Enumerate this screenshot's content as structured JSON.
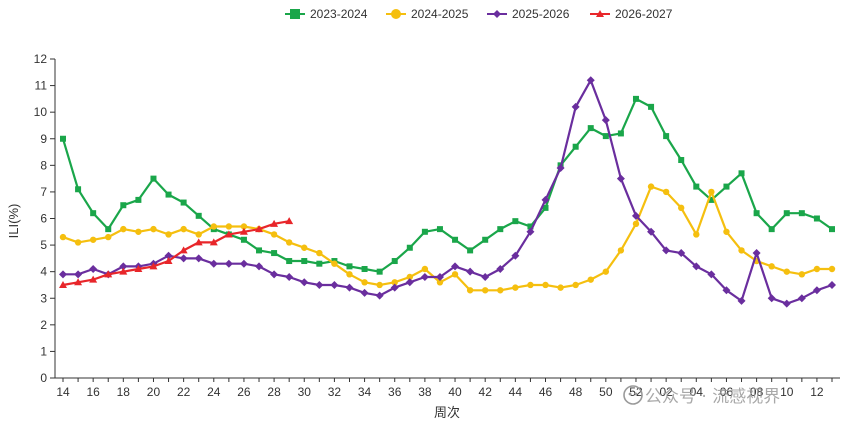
{
  "chart_data": {
    "type": "line",
    "title": "",
    "xlabel": "周次",
    "ylabel": "ILI(%)",
    "ylim": [
      0,
      12
    ],
    "yticks": [
      0,
      1,
      2,
      3,
      4,
      5,
      6,
      7,
      8,
      9,
      10,
      11,
      12
    ],
    "x_weeks": [
      14,
      15,
      16,
      17,
      18,
      19,
      20,
      21,
      22,
      23,
      24,
      25,
      26,
      27,
      28,
      29,
      30,
      31,
      32,
      33,
      34,
      35,
      36,
      37,
      38,
      39,
      40,
      41,
      42,
      43,
      44,
      45,
      46,
      47,
      48,
      49,
      50,
      51,
      52,
      1,
      2,
      3,
      4,
      5,
      6,
      7,
      8,
      9,
      10,
      11,
      12,
      13
    ],
    "x_tick_labels": [
      "14",
      "16",
      "18",
      "20",
      "22",
      "24",
      "26",
      "28",
      "30",
      "32",
      "34",
      "36",
      "38",
      "40",
      "42",
      "44",
      "46",
      "48",
      "50",
      "52",
      "02",
      "04",
      "06",
      "08",
      "10",
      "12"
    ],
    "x_tick_indices": [
      0,
      2,
      4,
      6,
      8,
      10,
      12,
      14,
      16,
      18,
      20,
      22,
      24,
      26,
      28,
      30,
      32,
      34,
      36,
      38,
      40,
      42,
      44,
      46,
      48,
      50
    ],
    "legend_position": "top-center",
    "grid": false,
    "series": [
      {
        "name": "2023-2024",
        "color": "#1aa64a",
        "marker": "square",
        "values": [
          9.0,
          7.1,
          6.2,
          5.6,
          6.5,
          6.7,
          7.5,
          6.9,
          6.6,
          6.1,
          5.6,
          5.4,
          5.2,
          4.8,
          4.7,
          4.4,
          4.4,
          4.3,
          4.4,
          4.2,
          4.1,
          4.0,
          4.4,
          4.9,
          5.5,
          5.6,
          5.2,
          4.8,
          5.2,
          5.6,
          5.9,
          5.7,
          6.4,
          8.0,
          8.7,
          9.4,
          9.1,
          9.2,
          10.5,
          10.2,
          9.1,
          8.2,
          7.2,
          6.7,
          7.2,
          7.7,
          6.2,
          5.6,
          6.2,
          6.2,
          6.0,
          5.6
        ]
      },
      {
        "name": "2024-2025",
        "color": "#f5bf0f",
        "marker": "circle",
        "values": [
          5.3,
          5.1,
          5.2,
          5.3,
          5.6,
          5.5,
          5.6,
          5.4,
          5.6,
          5.4,
          5.7,
          5.7,
          5.7,
          5.6,
          5.4,
          5.1,
          4.9,
          4.7,
          4.3,
          3.9,
          3.6,
          3.5,
          3.6,
          3.8,
          4.1,
          3.6,
          3.9,
          3.3,
          3.3,
          3.3,
          3.4,
          3.5,
          3.5,
          3.4,
          3.5,
          3.7,
          4.0,
          4.8,
          5.8,
          7.2,
          7.0,
          6.4,
          5.4,
          7.0,
          5.5,
          4.8,
          4.4,
          4.2,
          4.0,
          3.9,
          4.1,
          4.1
        ]
      },
      {
        "name": "2025-2026",
        "color": "#6a2e9e",
        "marker": "diamond",
        "values": [
          3.9,
          3.9,
          4.1,
          3.9,
          4.2,
          4.2,
          4.3,
          4.6,
          4.5,
          4.5,
          4.3,
          4.3,
          4.3,
          4.2,
          3.9,
          3.8,
          3.6,
          3.5,
          3.5,
          3.4,
          3.2,
          3.1,
          3.4,
          3.6,
          3.8,
          3.8,
          4.2,
          4.0,
          3.8,
          4.1,
          4.6,
          5.5,
          6.7,
          7.9,
          10.2,
          11.2,
          9.7,
          7.5,
          6.1,
          5.5,
          4.8,
          4.7,
          4.2,
          3.9,
          3.3,
          2.9,
          4.7,
          3.0,
          2.8,
          3.0,
          3.3,
          3.5
        ]
      },
      {
        "name": "2026-2027",
        "color": "#e8262a",
        "marker": "triangle",
        "values": [
          3.5,
          3.6,
          3.7,
          3.9,
          4.0,
          4.1,
          4.2,
          4.4,
          4.8,
          5.1,
          5.1,
          5.4,
          5.5,
          5.6,
          5.8,
          5.9
        ]
      }
    ]
  },
  "watermark": {
    "text": "公众号 · 流感视界",
    "icon": "wechat-official-account-icon"
  }
}
